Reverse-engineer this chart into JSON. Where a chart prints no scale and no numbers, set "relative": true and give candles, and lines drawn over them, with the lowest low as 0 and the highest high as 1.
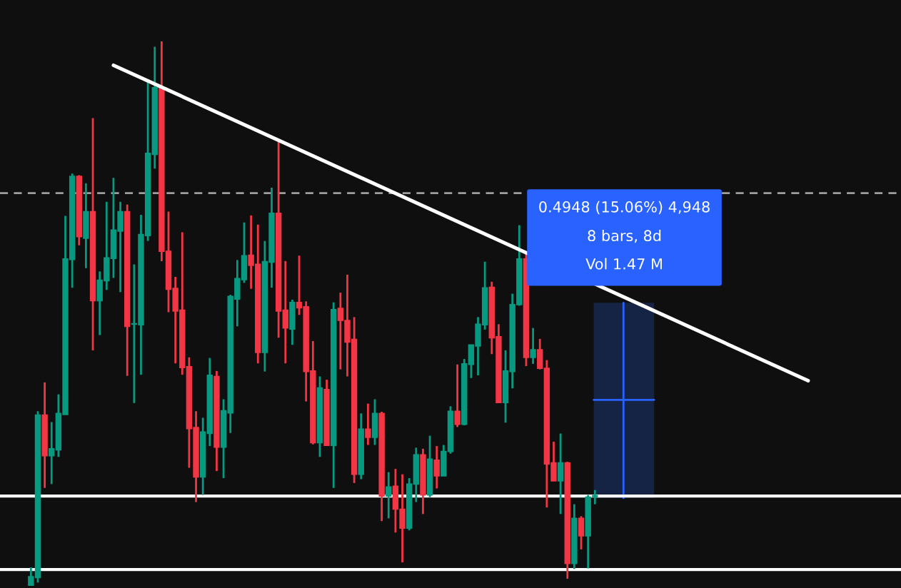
{
  "chart_data": {
    "type": "candlestick",
    "relative": true,
    "categories": [
      null,
      null,
      null,
      null,
      null,
      null,
      null,
      null,
      null,
      null,
      null,
      null,
      null,
      null,
      null,
      null,
      null,
      null,
      null,
      null,
      null,
      null,
      null,
      null,
      null,
      null,
      null,
      null,
      null,
      null,
      null,
      null,
      null,
      null,
      null,
      null,
      null,
      null,
      null,
      null,
      null,
      null,
      null,
      null,
      null,
      null,
      null,
      null,
      null,
      null,
      null,
      null,
      null,
      null,
      null,
      null,
      null,
      null,
      null,
      null,
      null,
      null,
      null,
      null,
      null,
      null,
      null,
      null,
      null,
      null,
      null,
      null,
      null,
      null,
      null,
      null,
      null,
      null,
      null,
      null,
      null,
      null,
      null,
      null,
      null,
      null,
      null,
      null,
      null,
      null,
      null,
      null,
      null,
      null,
      null,
      null,
      null,
      null,
      null,
      null,
      null,
      null,
      null,
      null,
      null,
      null,
      null,
      null,
      null,
      null,
      null,
      null,
      null,
      null,
      null,
      null,
      null,
      null,
      null,
      null,
      null,
      null,
      null,
      null,
      null,
      null,
      null,
      null,
      null,
      null,
      null
    ],
    "ohlc": [
      null,
      null,
      null,
      null,
      [
        0,
        0.033,
        0,
        0.016
      ],
      [
        0.014,
        0.32,
        0.005,
        0.313
      ],
      [
        0.313,
        0.373,
        0.179,
        0.238
      ],
      [
        0.238,
        0.3,
        0.186,
        0.251
      ],
      [
        0.249,
        0.351,
        0.236,
        0.316
      ],
      [
        0.314,
        0.679,
        0.314,
        0.6
      ],
      [
        0.599,
        0.757,
        0.547,
        0.752
      ],
      [
        0.752,
        0.754,
        0.625,
        0.641
      ],
      [
        0.638,
        0.739,
        0.583,
        0.687
      ],
      [
        0.687,
        0.859,
        0.432,
        0.523
      ],
      [
        0.523,
        0.577,
        0.46,
        0.561
      ],
      [
        0.56,
        0.705,
        0.543,
        0.602
      ],
      [
        0.601,
        0.749,
        0.565,
        0.653
      ],
      [
        0.651,
        0.705,
        0.539,
        0.687
      ],
      [
        0.687,
        0.7,
        0.385,
        0.476
      ],
      [
        0.48,
        0.59,
        0.335,
        0.481
      ],
      [
        0.479,
        0.681,
        0.387,
        0.645
      ],
      [
        0.643,
        0.93,
        0.633,
        0.794
      ],
      [
        0.792,
        0.99,
        0.766,
        0.915
      ],
      [
        0.915,
        1,
        0.596,
        0.614
      ],
      [
        0.614,
        0.687,
        0.502,
        0.544
      ],
      [
        0.546,
        0.567,
        0.408,
        0.504
      ],
      [
        0.506,
        0.649,
        0.387,
        0.4
      ],
      [
        0.402,
        0.419,
        0.216,
        0.288
      ],
      [
        0.29,
        0.32,
        0.153,
        0.199
      ],
      [
        0.199,
        0.308,
        0.166,
        0.282
      ],
      [
        0.279,
        0.418,
        0.256,
        0.386
      ],
      [
        0.384,
        0.394,
        0.21,
        0.254
      ],
      [
        0.254,
        0.342,
        0.197,
        0.321
      ],
      [
        0.317,
        0.534,
        0.28,
        0.531
      ],
      [
        0.526,
        0.598,
        0.476,
        0.564
      ],
      [
        0.562,
        0.667,
        0.556,
        0.606
      ],
      [
        0.607,
        0.68,
        0.545,
        0.588
      ],
      [
        0.59,
        0.663,
        0.408,
        0.428
      ],
      [
        0.428,
        0.633,
        0.393,
        0.595
      ],
      [
        0.594,
        0.731,
        0.547,
        0.684
      ],
      [
        0.684,
        0.815,
        0.455,
        0.504
      ],
      [
        0.506,
        0.596,
        0.408,
        0.473
      ],
      [
        0.471,
        0.525,
        0.442,
        0.52
      ],
      [
        0.52,
        0.606,
        0.497,
        0.51
      ],
      [
        0.512,
        0.522,
        0.338,
        0.393
      ],
      [
        0.394,
        0.449,
        0.259,
        0.262
      ],
      [
        0.262,
        0.384,
        0.236,
        0.363
      ],
      [
        0.36,
        0.378,
        0.256,
        0.257
      ],
      [
        0.257,
        0.52,
        0.179,
        0.507
      ],
      [
        0.509,
        0.538,
        0.397,
        0.487
      ],
      [
        0.487,
        0.571,
        0.384,
        0.447
      ],
      [
        0.452,
        0.493,
        0.188,
        0.204
      ],
      [
        0.204,
        0.316,
        0.195,
        0.287
      ],
      [
        0.287,
        0.334,
        0.258,
        0.272
      ],
      [
        0.272,
        0.342,
        0.258,
        0.316
      ],
      [
        0.316,
        0.319,
        0.118,
        0.164
      ],
      [
        0.164,
        0.208,
        0.123,
        0.181
      ],
      [
        0.182,
        0.214,
        0.097,
        0.14
      ],
      [
        0.14,
        0.204,
        0.042,
        0.105
      ],
      [
        0.105,
        0.197,
        0.101,
        0.186
      ],
      [
        0.186,
        0.253,
        0.153,
        0.24
      ],
      [
        0.24,
        0.251,
        0.131,
        0.166
      ],
      [
        0.166,
        0.275,
        0.162,
        0.232
      ],
      [
        0.23,
        0.256,
        0.178,
        0.201
      ],
      [
        0.201,
        0.258,
        0.201,
        0.246
      ],
      [
        0.246,
        0.329,
        0.242,
        0.32
      ],
      [
        0.32,
        0.406,
        0.291,
        0.296
      ],
      [
        0.296,
        0.416,
        0.294,
        0.407
      ],
      [
        0.406,
        0.442,
        0.381,
        0.442
      ],
      [
        0.44,
        0.493,
        0.386,
        0.48
      ],
      [
        0.479,
        0.595,
        0.47,
        0.547
      ],
      [
        0.548,
        0.558,
        0.425,
        0.455
      ],
      [
        0.457,
        0.48,
        0.336,
        0.336
      ],
      [
        0.336,
        0.432,
        0.299,
        0.394
      ],
      [
        0.393,
        0.536,
        0.362,
        0.516
      ],
      [
        0.516,
        0.662,
        0.514,
        0.6
      ],
      [
        0.6,
        0.614,
        0.403,
        0.419
      ],
      [
        0.419,
        0.473,
        0.407,
        0.433
      ],
      [
        0.433,
        0.453,
        0.397,
        0.399
      ],
      [
        0.399,
        0.414,
        0.143,
        0.223
      ],
      [
        0.225,
        0.264,
        0.192,
        0.192
      ],
      [
        0.192,
        0.279,
        0.131,
        0.225
      ],
      [
        0.225,
        0.227,
        0.012,
        0.04
      ],
      [
        0.04,
        0.149,
        0.03,
        0.123
      ],
      [
        0.123,
        0.127,
        0.066,
        0.091
      ],
      [
        0.091,
        0.166,
        0.031,
        0.162
      ],
      [
        0.163,
        0.175,
        0.149,
        0.165
      ],
      null,
      null,
      null,
      null,
      null,
      null,
      null,
      null,
      null,
      null,
      null,
      null,
      null,
      null,
      null,
      null,
      null,
      null,
      null,
      null,
      null,
      null,
      null,
      null,
      null,
      null,
      null,
      null,
      null,
      null,
      null,
      null,
      null,
      null,
      null,
      null,
      null,
      null,
      null,
      null,
      null,
      null,
      null,
      null
    ],
    "colors": [
      null,
      null,
      null,
      null,
      "#089981",
      "#089981",
      "#f23645",
      "#089981",
      "#089981",
      "#089981",
      "#089981",
      "#f23645",
      "#089981",
      "#f23645",
      "#089981",
      "#089981",
      "#089981",
      "#089981",
      "#f23645",
      "#089981",
      "#089981",
      "#089981",
      "#089981",
      "#f23645",
      "#f23645",
      "#f23645",
      "#f23645",
      "#f23645",
      "#f23645",
      "#089981",
      "#089981",
      "#f23645",
      "#089981",
      "#089981",
      "#089981",
      "#089981",
      "#f23645",
      "#f23645",
      "#089981",
      "#089981",
      "#f23645",
      "#f23645",
      "#089981",
      "#f23645",
      "#f23645",
      "#f23645",
      "#089981",
      "#f23645",
      "#089981",
      "#f23645",
      "#f23645",
      "#f23645",
      "#089981",
      "#f23645",
      "#089981",
      "#f23645",
      "#089981",
      "#f23645",
      "#f23645",
      "#089981",
      "#089981",
      "#f23645",
      "#089981",
      "#f23645",
      "#089981",
      "#089981",
      "#f23645",
      "#089981",
      "#089981",
      "#089981",
      "#089981",
      "#f23645",
      "#f23645",
      "#089981",
      "#089981",
      "#089981",
      "#f23645",
      "#089981",
      "#f23645",
      "#f23645",
      "#f23645",
      "#089981",
      "#f23645",
      "#089981",
      "#f23645",
      "#089981",
      "#089981",
      null,
      null,
      null,
      null,
      null,
      null,
      null,
      null,
      null,
      null,
      null,
      null,
      null,
      null,
      null,
      null,
      null,
      null,
      null,
      null,
      null,
      null,
      null,
      null,
      null,
      null,
      null,
      null,
      null,
      null,
      null,
      null,
      null,
      null,
      null,
      null,
      null,
      null,
      null,
      null,
      null,
      null,
      null,
      null
    ],
    "series": [
      {
        "type": "line",
        "values": [
          null,
          null,
          null,
          null,
          null,
          null,
          null,
          null,
          null,
          null,
          null,
          null,
          null,
          null,
          null,
          null,
          0.956,
          null,
          null,
          null,
          null,
          null,
          null,
          null,
          null,
          null,
          null,
          null,
          null,
          null,
          null,
          null,
          null,
          null,
          null,
          null,
          null,
          null,
          null,
          null,
          null,
          null,
          null,
          null,
          null,
          null,
          null,
          null,
          null,
          null,
          null,
          null,
          null,
          null,
          null,
          null,
          null,
          null,
          null,
          null,
          null,
          null,
          null,
          null,
          null,
          null,
          null,
          null,
          null,
          null,
          null,
          null,
          null,
          null,
          null,
          null,
          null,
          null,
          null,
          null,
          null,
          null,
          null,
          null,
          null,
          null,
          null,
          null,
          null,
          null,
          null,
          null,
          null,
          null,
          null,
          null,
          null,
          null,
          null,
          null,
          null,
          null,
          null,
          null,
          null,
          null,
          null,
          null,
          null,
          null,
          null,
          null,
          null,
          null,
          null,
          null,
          null,
          0.376,
          null,
          null,
          null,
          null,
          null,
          null,
          null,
          null,
          null,
          null,
          null,
          null,
          null
        ],
        "color": "#ffffff"
      }
    ],
    "ref_lines": [
      {
        "axis": "y",
        "value": 0.164,
        "color": "#ffffff",
        "line_style": "solid"
      },
      {
        "axis": "y",
        "value": 0.029,
        "color": "#ffffff",
        "line_style": "solid"
      },
      {
        "axis": "y",
        "value": 0.721,
        "color": "#9e9e9e",
        "line_style": "dashed"
      }
    ],
    "annotations": [
      "0.4948 (15.06%) 4,948",
      "8 bars, 8d",
      "Vol 1.47 M"
    ]
  }
}
